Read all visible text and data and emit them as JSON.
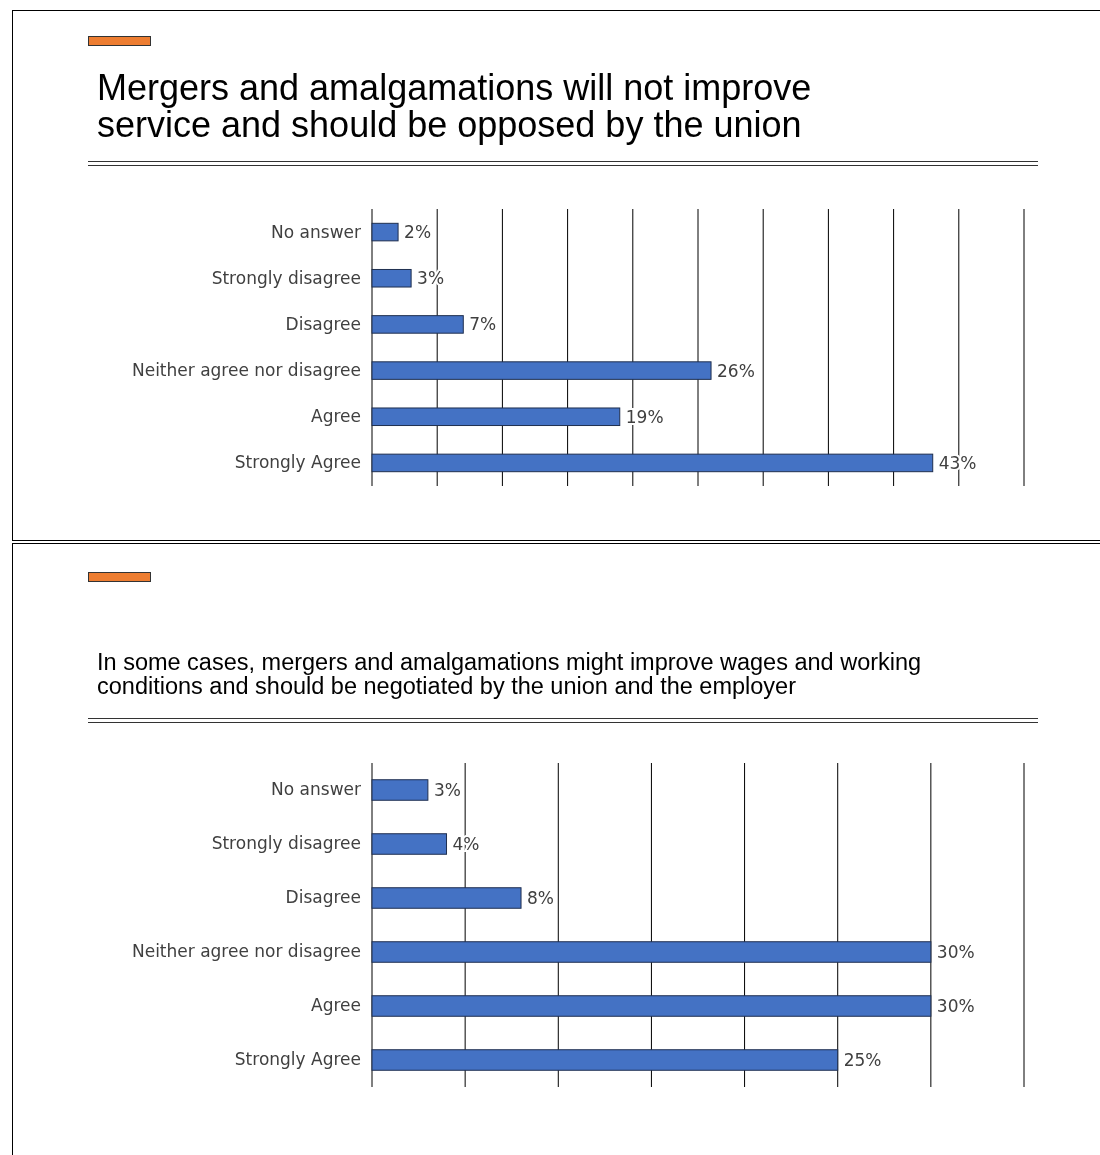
{
  "chart_data": [
    {
      "type": "bar",
      "orientation": "horizontal",
      "title": "Mergers and amalgamations will not improve service and should be opposed by the union",
      "categories": [
        "No answer",
        "Strongly disagree",
        "Disagree",
        "Neither agree nor disagree",
        "Agree",
        "Strongly Agree"
      ],
      "values": [
        2,
        3,
        7,
        26,
        19,
        43
      ],
      "value_labels": [
        "2%",
        "3%",
        "7%",
        "26%",
        "19%",
        "43%"
      ],
      "color": "#4472c4",
      "xlim": [
        0,
        50
      ],
      "xticks": [
        {
          "value": 0,
          "label": null
        },
        {
          "value": 5,
          "label": null
        },
        {
          "value": 10,
          "label": null
        },
        {
          "value": 15,
          "label": null
        },
        {
          "value": 20,
          "label": null
        },
        {
          "value": 25,
          "label": null
        },
        {
          "value": 30,
          "label": null
        },
        {
          "value": 35,
          "label": null
        },
        {
          "value": 40,
          "label": null
        },
        {
          "value": 45,
          "label": null
        },
        {
          "value": 50,
          "label": null
        }
      ],
      "grid": "x",
      "tick_labels": "y"
    },
    {
      "type": "bar",
      "orientation": "horizontal",
      "title": "In some cases, mergers and amalgamations might improve wages and working conditions and should be negotiated by the union and the employer",
      "categories": [
        "No answer",
        "Strongly disagree",
        "Disagree",
        "Neither agree nor disagree",
        "Agree",
        "Strongly Agree"
      ],
      "values": [
        3,
        4,
        8,
        30,
        30,
        25
      ],
      "value_labels": [
        "3%",
        "4%",
        "8%",
        "30%",
        "30%",
        "25%"
      ],
      "color": "#4472c4",
      "xlim": [
        0,
        35
      ],
      "xticks": [
        {
          "value": 0,
          "label": null
        },
        {
          "value": 5,
          "label": null
        },
        {
          "value": 10,
          "label": null
        },
        {
          "value": 15,
          "label": null
        },
        {
          "value": 20,
          "label": null
        },
        {
          "value": 25,
          "label": null
        },
        {
          "value": 30,
          "label": null
        },
        {
          "value": 35,
          "label": null
        }
      ],
      "grid": "x",
      "tick_labels": "y"
    }
  ]
}
